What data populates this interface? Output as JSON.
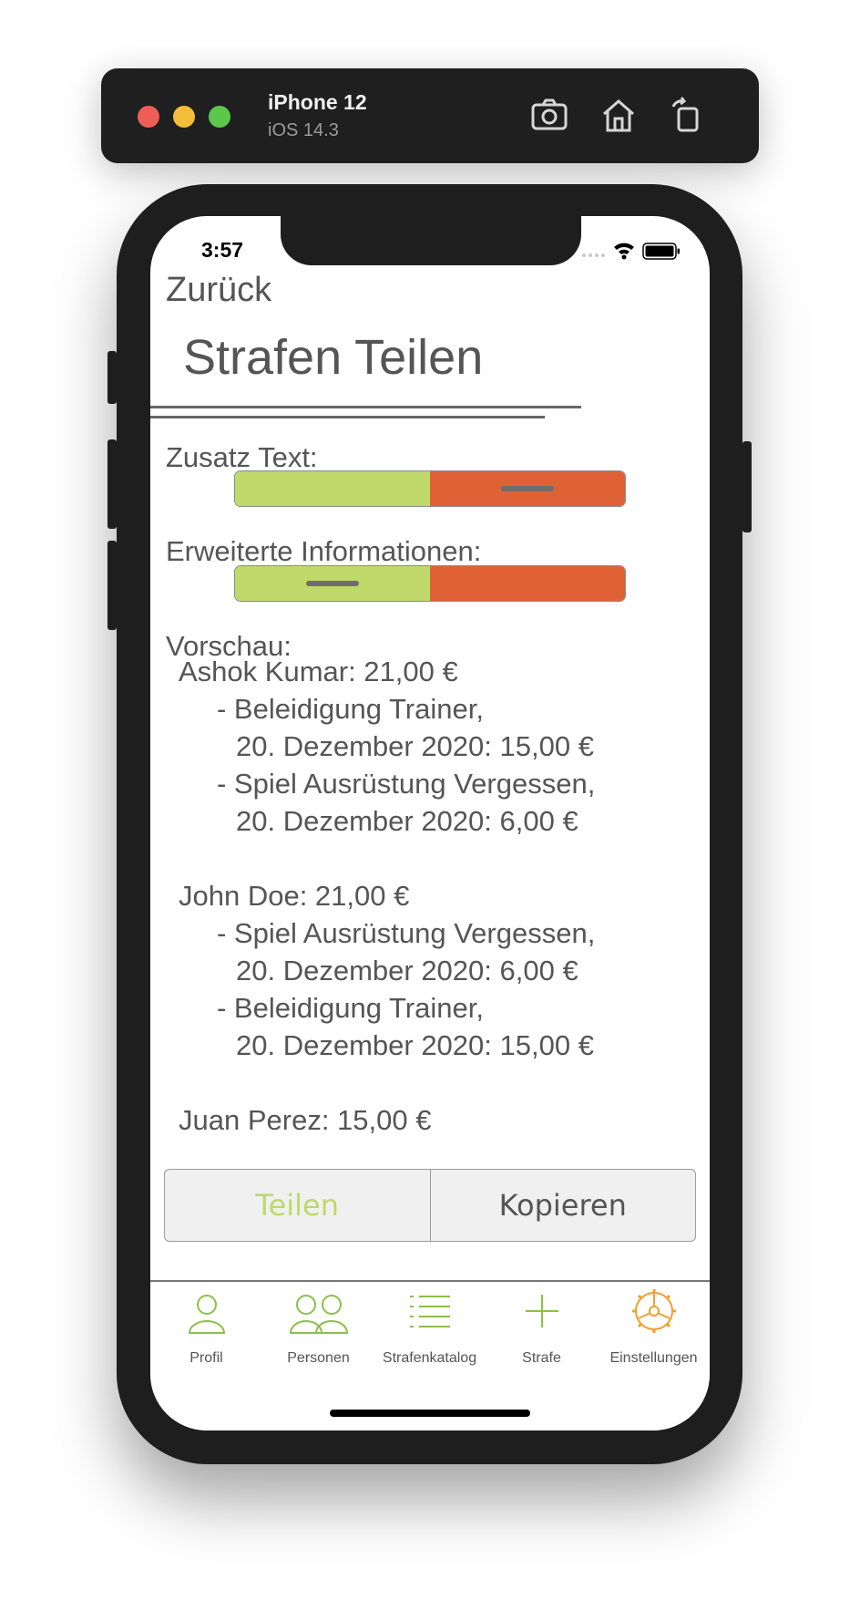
{
  "simulator": {
    "device": "iPhone 12",
    "os": "iOS 14.3",
    "icons": [
      "screenshot-icon",
      "home-icon",
      "rotate-icon"
    ]
  },
  "status": {
    "time": "3:57"
  },
  "nav": {
    "back": "Zurück",
    "title": "Strafen Teilen"
  },
  "options": {
    "zusatz_label": "Zusatz Text:",
    "zusatz_enabled": false,
    "erweitert_label": "Erweiterte Informationen:",
    "erweitert_enabled": true
  },
  "preview": {
    "label": "Vorschau:",
    "persons": [
      {
        "header": "Ashok Kumar:   21,00 €",
        "items": [
          {
            "title": "- Beleidigung Trainer,",
            "detail": "20. Dezember 2020:    15,00 €"
          },
          {
            "title": "- Spiel Ausrüstung Vergessen,",
            "detail": "20. Dezember 2020:    6,00 €"
          }
        ]
      },
      {
        "header": "John Doe:    21,00 €",
        "items": [
          {
            "title": "- Spiel Ausrüstung Vergessen,",
            "detail": "20. Dezember 2020:    6,00 €"
          },
          {
            "title": "- Beleidigung Trainer,",
            "detail": "20. Dezember 2020:    15,00 €"
          }
        ]
      },
      {
        "header": "Juan Perez:  15,00 €",
        "items": []
      }
    ]
  },
  "actions": {
    "share": "Teilen",
    "copy": "Kopieren"
  },
  "tabs": [
    {
      "label": "Profil",
      "icon": "person-icon"
    },
    {
      "label": "Personen",
      "icon": "people-icon"
    },
    {
      "label": "Strafenkatalog",
      "icon": "list-icon"
    },
    {
      "label": "Strafe",
      "icon": "plus-icon"
    },
    {
      "label": "Einstellungen",
      "icon": "gear-icon"
    }
  ],
  "colors": {
    "accent_green": "#bfd96a",
    "accent_orange": "#e06136",
    "text_gray": "#555555"
  }
}
